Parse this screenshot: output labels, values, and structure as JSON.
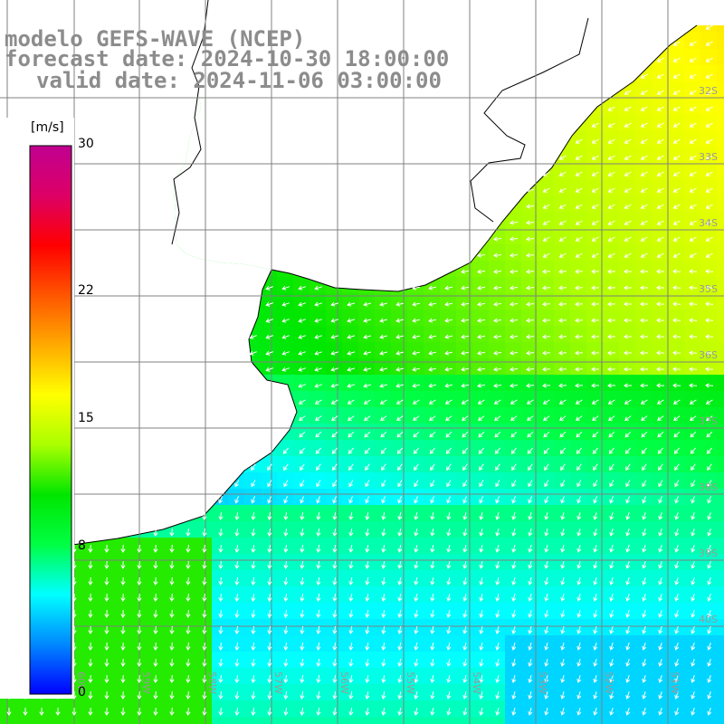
{
  "header": {
    "model_line": "modelo GEFS-WAVE (NCEP)",
    "forecast_line": "forecast date: 2024-10-30 18:00:00",
    "valid_line": "valid date: 2024-11-06 03:00:00"
  },
  "colorbar": {
    "unit": "[m/s]",
    "ticks": [
      "30",
      "22",
      "15",
      "8",
      "0"
    ],
    "tick_values": [
      30,
      22,
      15,
      8,
      0
    ],
    "min": 0,
    "max": 30,
    "colors": [
      "#0000ff",
      "#0088ff",
      "#00ffff",
      "#00ff44",
      "#00e600",
      "#aaff00",
      "#ffff00",
      "#ffaa00",
      "#ff5500",
      "#ff0000",
      "#dd0066",
      "#c00090"
    ]
  },
  "map": {
    "variable": "wind speed and direction",
    "lon_labels": [
      "61W",
      "60W",
      "59W",
      "58W",
      "57W",
      "56W",
      "55W",
      "54W",
      "53W",
      "52W",
      "51W"
    ],
    "lat_labels": [
      "32S",
      "33S",
      "34S",
      "35S",
      "36S",
      "37S",
      "38S",
      "39S",
      "40S"
    ],
    "land_color": "#ffffff",
    "coast_color": "#000000",
    "grid_color": "#808080",
    "arrow_color": "#ffffff"
  }
}
